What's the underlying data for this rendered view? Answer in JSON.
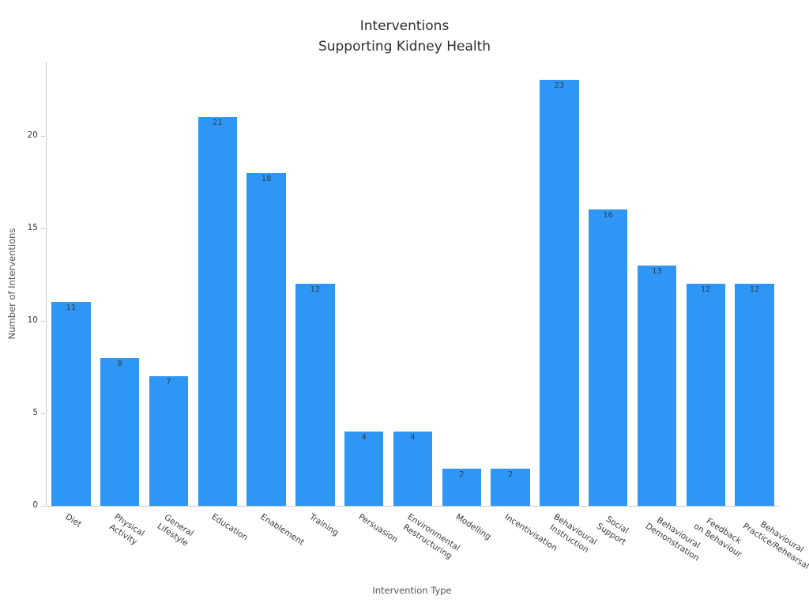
{
  "title": {
    "line1": "Interventions",
    "line2": "Supporting Kidney Health"
  },
  "chart_data": {
    "type": "bar",
    "title": "Interventions\nSupporting Kidney Health",
    "xlabel": "Intervention Type",
    "ylabel": "Number of Interventions",
    "bar_color": "#2e96f5",
    "value_label_color": "#35404a",
    "axis_color": "#c9c9c9",
    "grid": false,
    "legend": null,
    "ylim": [
      0,
      24
    ],
    "yticks": [
      0,
      5,
      10,
      15,
      20
    ],
    "categories": [
      "Diet",
      "Physical\nActivity",
      "General\nLifestyle",
      "Education",
      "Enablement",
      "Training",
      "Persuasion",
      "Environmental\nRestructuring",
      "Modelling",
      "Incentivisation",
      "Behavioural\nInstruction",
      "Social\nSupport",
      "Behavioural\nDemonstration",
      "Feedback\non Behaviour",
      "Behavioural\nPractice/Rehearsal"
    ],
    "values": [
      11,
      8,
      7,
      21,
      18,
      12,
      4,
      4,
      2,
      2,
      23,
      16,
      13,
      12,
      12
    ]
  }
}
